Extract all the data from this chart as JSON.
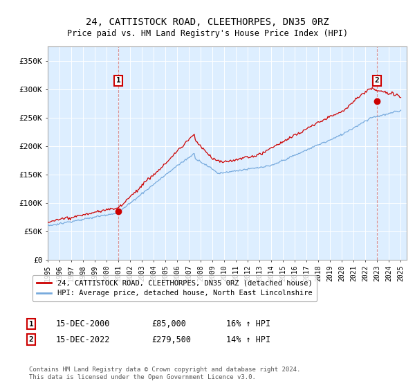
{
  "title": "24, CATTISTOCK ROAD, CLEETHORPES, DN35 0RZ",
  "subtitle": "Price paid vs. HM Land Registry's House Price Index (HPI)",
  "ylabel_ticks": [
    "£0",
    "£50K",
    "£100K",
    "£150K",
    "£200K",
    "£250K",
    "£300K",
    "£350K"
  ],
  "ytick_vals": [
    0,
    50000,
    100000,
    150000,
    200000,
    250000,
    300000,
    350000
  ],
  "ylim": [
    0,
    375000
  ],
  "xlim_start": 1995.0,
  "xlim_end": 2025.5,
  "background_color": "#ddeeff",
  "line_color_red": "#cc0000",
  "line_color_blue": "#77aadd",
  "sale1_x": 2001.0,
  "sale1_y": 85000,
  "sale1_label": "1",
  "sale2_x": 2022.97,
  "sale2_y": 279500,
  "sale2_label": "2",
  "legend_line1": "24, CATTISTOCK ROAD, CLEETHORPES, DN35 0RZ (detached house)",
  "legend_line2": "HPI: Average price, detached house, North East Lincolnshire",
  "annotation1_date": "15-DEC-2000",
  "annotation1_price": "£85,000",
  "annotation1_hpi": "16% ↑ HPI",
  "annotation2_date": "15-DEC-2022",
  "annotation2_price": "£279,500",
  "annotation2_hpi": "14% ↑ HPI",
  "footer": "Contains HM Land Registry data © Crown copyright and database right 2024.\nThis data is licensed under the Open Government Licence v3.0.",
  "xtick_years": [
    1995,
    1996,
    1997,
    1998,
    1999,
    2000,
    2001,
    2002,
    2003,
    2004,
    2005,
    2006,
    2007,
    2008,
    2009,
    2010,
    2011,
    2012,
    2013,
    2014,
    2015,
    2016,
    2017,
    2018,
    2019,
    2020,
    2021,
    2022,
    2023,
    2024,
    2025
  ]
}
